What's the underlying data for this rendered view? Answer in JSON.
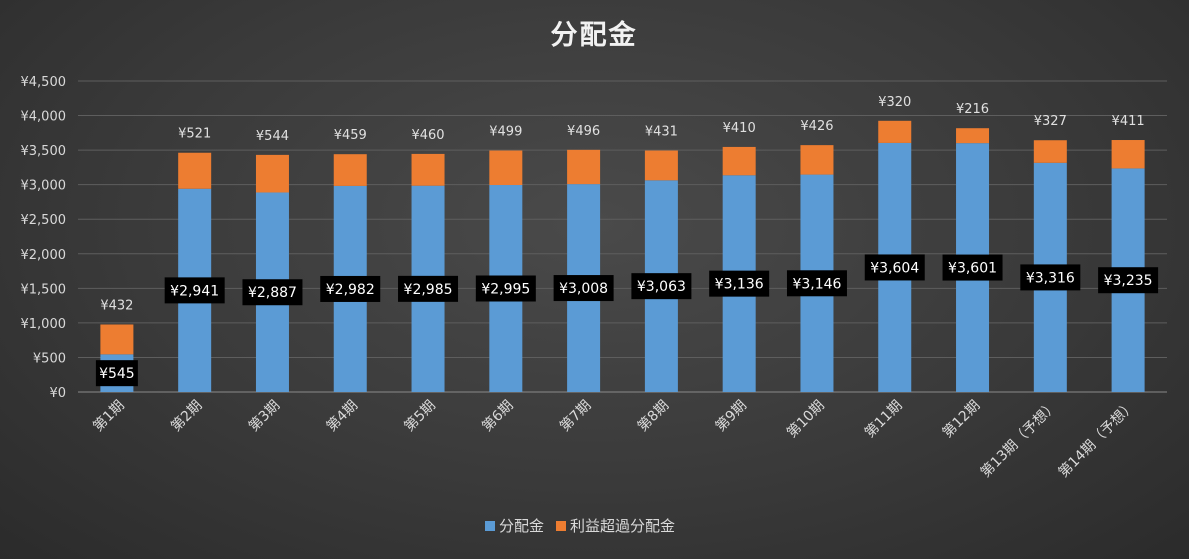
{
  "chart_data": {
    "type": "bar",
    "stacked": true,
    "title": "分配金",
    "categories": [
      "第1期",
      "第2期",
      "第3期",
      "第4期",
      "第5期",
      "第6期",
      "第7期",
      "第8期",
      "第9期",
      "第10期",
      "第11期",
      "第12期",
      "第13期（予想）",
      "第14期（予想）"
    ],
    "series": [
      {
        "name": "分配金",
        "color": "#5b9bd5",
        "values": [
          545,
          2941,
          2887,
          2982,
          2985,
          2995,
          3008,
          3063,
          3136,
          3146,
          3604,
          3601,
          3316,
          3235
        ],
        "labels": [
          "¥545",
          "¥2,941",
          "¥2,887",
          "¥2,982",
          "¥2,985",
          "¥2,995",
          "¥3,008",
          "¥3,063",
          "¥3,136",
          "¥3,146",
          "¥3,604",
          "¥3,601",
          "¥3,316",
          "¥3,235"
        ]
      },
      {
        "name": "利益超過分配金",
        "color": "#ed7d31",
        "values": [
          432,
          521,
          544,
          459,
          460,
          499,
          496,
          431,
          410,
          426,
          320,
          216,
          327,
          411
        ],
        "labels": [
          "¥432",
          "¥521",
          "¥544",
          "¥459",
          "¥460",
          "¥499",
          "¥496",
          "¥431",
          "¥410",
          "¥426",
          "¥320",
          "¥216",
          "¥327",
          "¥411"
        ]
      }
    ],
    "yticks": [
      "¥0",
      "¥500",
      "¥1,000",
      "¥1,500",
      "¥2,000",
      "¥2,500",
      "¥3,000",
      "¥3,500",
      "¥4,000",
      "¥4,500"
    ],
    "ylim": [
      0,
      4500
    ],
    "grid": true,
    "legend": "bottom"
  }
}
